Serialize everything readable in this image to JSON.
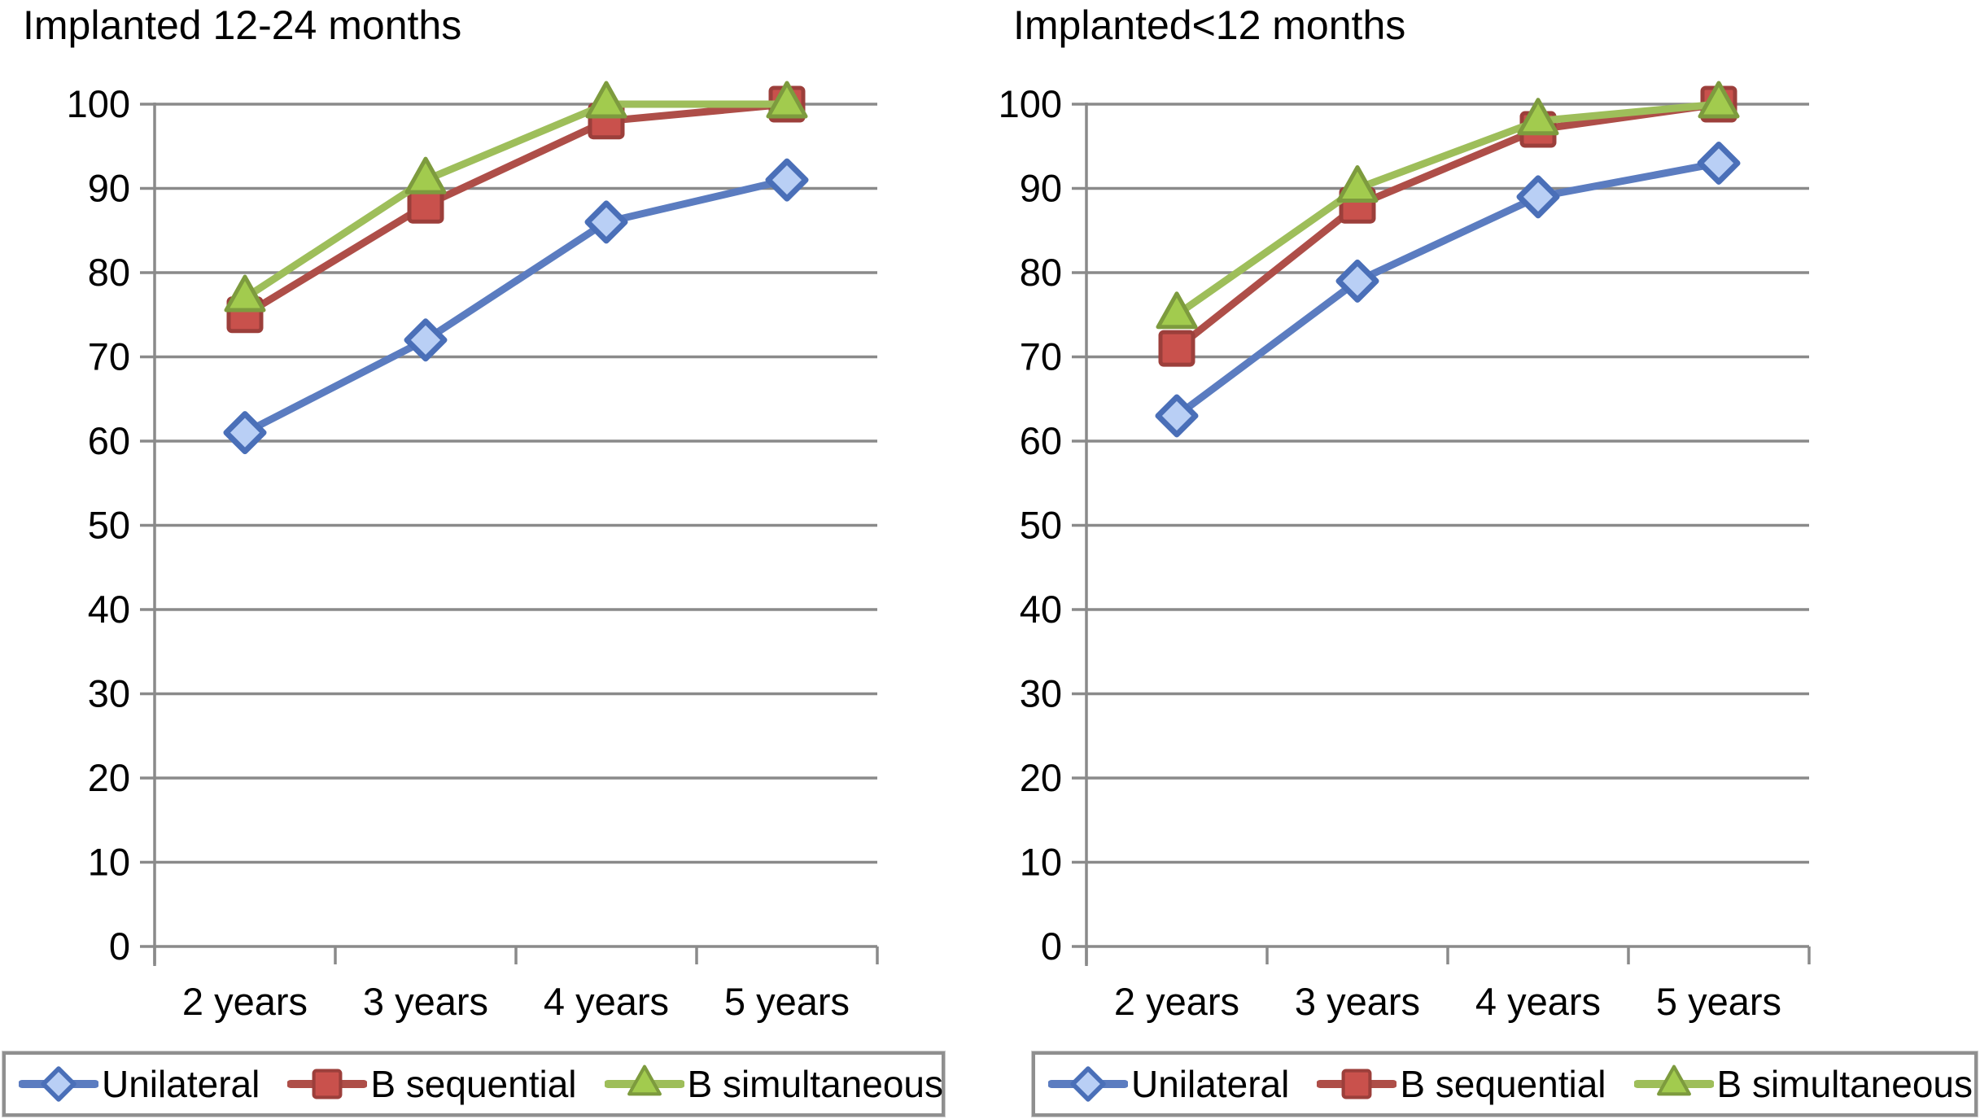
{
  "chart_data": [
    {
      "type": "line",
      "title": "Implanted 12-24 months",
      "categories": [
        "2 years",
        "3 years",
        "4 years",
        "5 years"
      ],
      "xlabel": "",
      "ylabel": "",
      "ylim": [
        0,
        100
      ],
      "ytick_labels": [
        "0",
        "10",
        "20",
        "30",
        "40",
        "50",
        "60",
        "70",
        "80",
        "90",
        "100"
      ],
      "grid": true,
      "legend_position": "bottom",
      "series": [
        {
          "name": "Unilateral",
          "marker": "diamond",
          "line_color": "#5b7cc0",
          "fill_color": "#b9cff5",
          "edge_color": "#4a6fb8",
          "values": [
            61,
            72,
            86,
            91
          ]
        },
        {
          "name": "B sequential",
          "marker": "square",
          "line_color": "#ae4e48",
          "fill_color": "#c9514c",
          "edge_color": "#9c3f3b",
          "values": [
            75,
            88,
            98,
            100
          ]
        },
        {
          "name": "B simultaneous",
          "marker": "triangle",
          "line_color": "#9ebe5a",
          "fill_color": "#a2cb4e",
          "edge_color": "#7d9b3e",
          "values": [
            77,
            91,
            100,
            100
          ]
        }
      ]
    },
    {
      "type": "line",
      "title": "Implanted<12 months",
      "categories": [
        "2 years",
        "3 years",
        "4 years",
        "5 years"
      ],
      "xlabel": "",
      "ylabel": "",
      "ylim": [
        0,
        100
      ],
      "ytick_labels": [
        "0",
        "10",
        "20",
        "30",
        "40",
        "50",
        "60",
        "70",
        "80",
        "90",
        "100"
      ],
      "grid": true,
      "legend_position": "bottom",
      "series": [
        {
          "name": "Unilateral",
          "marker": "diamond",
          "line_color": "#5b7cc0",
          "fill_color": "#b9cff5",
          "edge_color": "#4a6fb8",
          "values": [
            63,
            79,
            89,
            93
          ]
        },
        {
          "name": "B sequential",
          "marker": "square",
          "line_color": "#ae4e48",
          "fill_color": "#c9514c",
          "edge_color": "#9c3f3b",
          "values": [
            71,
            88,
            97,
            100
          ]
        },
        {
          "name": "B simultaneous",
          "marker": "triangle",
          "line_color": "#9ebe5a",
          "fill_color": "#a2cb4e",
          "edge_color": "#7d9b3e",
          "values": [
            75,
            90,
            98,
            100
          ]
        }
      ]
    }
  ],
  "style": {
    "grid_color": "#8a8a8a",
    "axis_color": "#8a8a8a",
    "text_color": "#000000"
  }
}
